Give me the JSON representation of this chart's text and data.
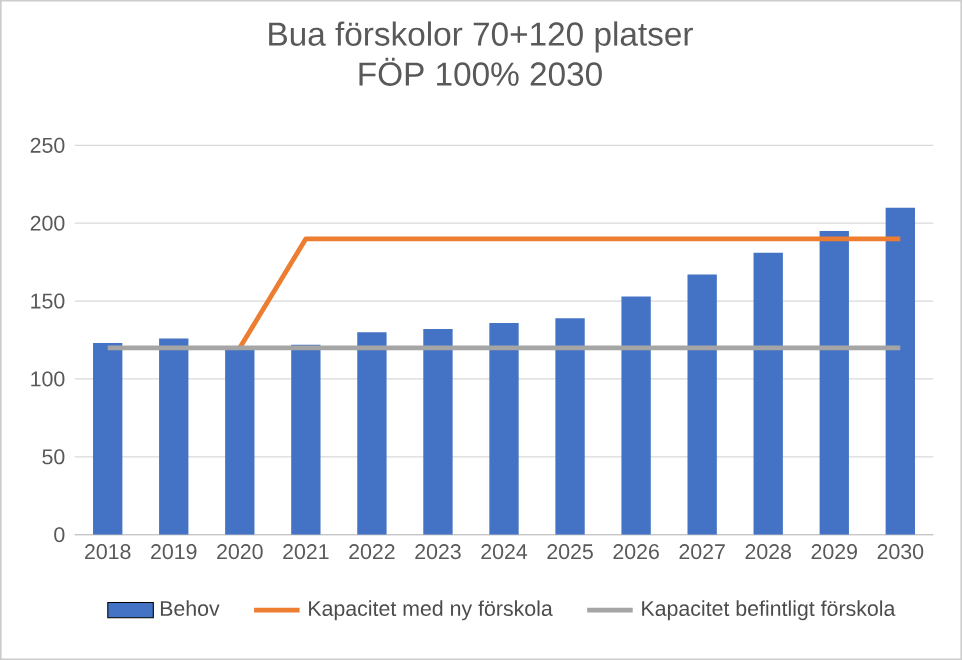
{
  "chart_data": {
    "type": "bar",
    "title": "Bua förskolor 70+120 platser",
    "subtitle": "FÖP 100% 2030",
    "categories": [
      "2018",
      "2019",
      "2020",
      "2021",
      "2022",
      "2023",
      "2024",
      "2025",
      "2026",
      "2027",
      "2028",
      "2029",
      "2030"
    ],
    "series": [
      {
        "name": "Behov",
        "color": "#4472c4",
        "values": [
          123,
          126,
          120,
          122,
          130,
          132,
          136,
          139,
          153,
          167,
          181,
          195,
          210
        ]
      },
      {
        "name": "Kapacitet med ny förskola",
        "type": "line",
        "color": "#ed7d31",
        "values": [
          null,
          null,
          120,
          190,
          190,
          190,
          190,
          190,
          190,
          190,
          190,
          190,
          190
        ]
      },
      {
        "name": "Kapacitet befintligt förskola",
        "type": "line",
        "color": "#a5a5a5",
        "values": [
          120,
          120,
          120,
          120,
          120,
          120,
          120,
          120,
          120,
          120,
          120,
          120,
          120
        ]
      }
    ],
    "ylim": [
      0,
      250
    ],
    "yticks": [
      0,
      50,
      100,
      150,
      200,
      250
    ],
    "grid": "y",
    "legend": "bottom",
    "marker": "none",
    "line_style": "solid"
  }
}
